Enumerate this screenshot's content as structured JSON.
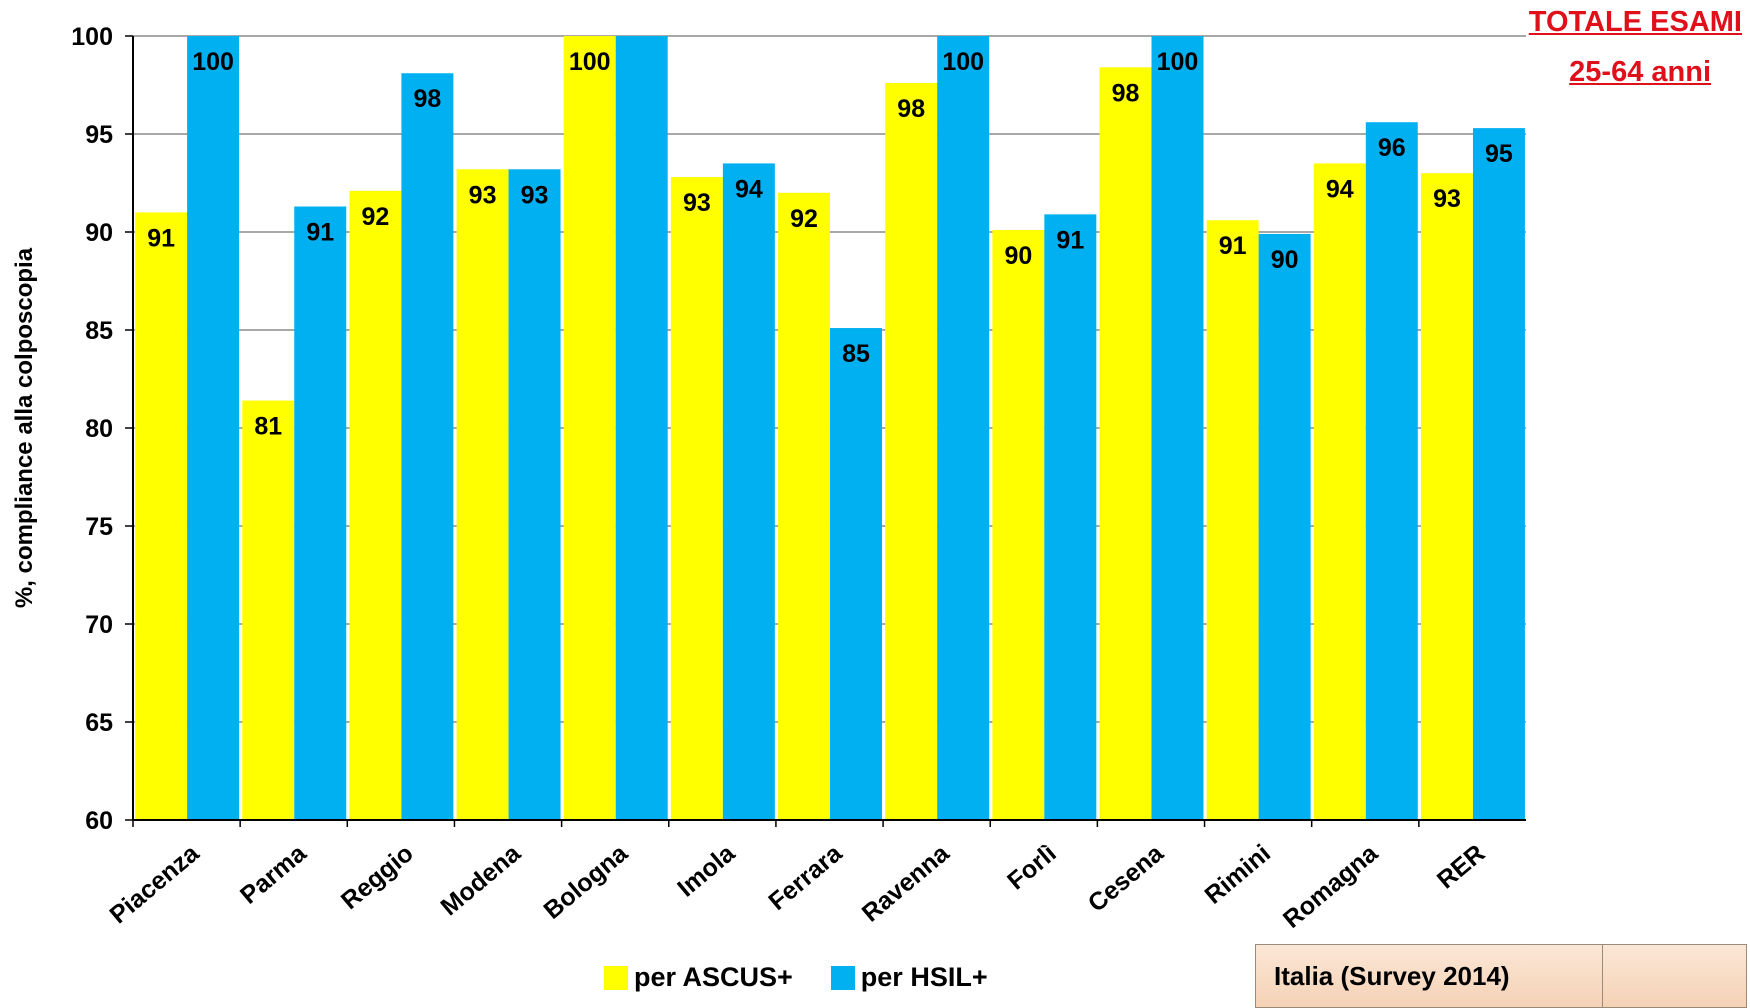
{
  "colors": {
    "series_ascus": "#ffff00",
    "series_hsil": "#00b0f0",
    "title": "#e0101a",
    "gridline": "#8c8c8c",
    "axis": "#000000"
  },
  "corner_title": {
    "line1": "TOTALE ESAMI",
    "line2": "25-64 anni"
  },
  "info_box": {
    "label": "Italia (Survey 2014)",
    "value": ""
  },
  "chart_data": {
    "type": "bar",
    "ylabel": "%, compliance alla colposcopia",
    "ylim": [
      60,
      100
    ],
    "yticks": [
      60,
      65,
      70,
      75,
      80,
      85,
      90,
      95,
      100
    ],
    "grid": true,
    "legend_position": "bottom",
    "categories": [
      "Piacenza",
      "Parma",
      "Reggio",
      "Modena",
      "Bologna",
      "Imola",
      "Ferrara",
      "Ravenna",
      "Forlì",
      "Cesena",
      "Rimini",
      "Romagna",
      "RER"
    ],
    "series": [
      {
        "name": "per ASCUS+",
        "color": "#ffff00",
        "values": [
          91.0,
          81.4,
          92.1,
          93.2,
          100.0,
          92.8,
          92.0,
          97.6,
          90.1,
          98.4,
          90.6,
          93.5,
          93.0
        ],
        "labels": [
          "91",
          "81",
          "92",
          "93",
          "100",
          "93",
          "92",
          "98",
          "90",
          "98",
          "91",
          "94",
          "93"
        ]
      },
      {
        "name": "per HSIL+",
        "color": "#00b0f0",
        "values": [
          100.0,
          91.3,
          98.1,
          93.2,
          100.0,
          93.5,
          85.1,
          100.0,
          90.9,
          100.0,
          89.9,
          95.6,
          95.3
        ],
        "labels": [
          "100",
          "91",
          "98",
          "93",
          "",
          "94",
          "85",
          "100",
          "91",
          "100",
          "90",
          "96",
          "95"
        ]
      }
    ]
  }
}
